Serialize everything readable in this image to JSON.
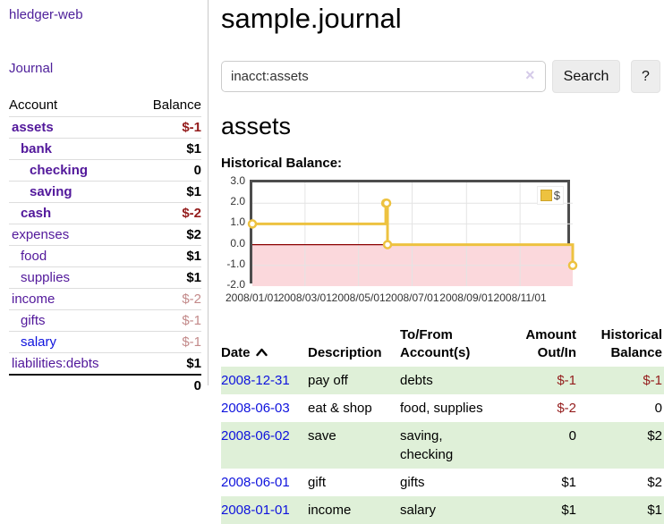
{
  "colors": {
    "link_purple": "#52189b",
    "link_blue": "#0e12dd",
    "negative_strong": "#941c1c",
    "negative_muted": "#c38a8a",
    "row_highlight": "#dff0d8",
    "chart_line": "#edc240",
    "chart_negative_region": "#fbd8dc",
    "chart_zero_line": "#8b0000"
  },
  "sidebar": {
    "app_title": "hledger-web",
    "journal_link": "Journal",
    "accounts_table": {
      "headers": {
        "account": "Account",
        "balance": "Balance"
      },
      "rows": [
        {
          "name": "assets",
          "indent": 0,
          "bold": true,
          "name_class": "",
          "balance": "$-1",
          "balance_class": "neg-strong"
        },
        {
          "name": "bank",
          "indent": 1,
          "bold": true,
          "name_class": "",
          "balance": "$1",
          "balance_class": ""
        },
        {
          "name": "checking",
          "indent": 2,
          "bold": true,
          "name_class": "",
          "balance": "0",
          "balance_class": ""
        },
        {
          "name": "saving",
          "indent": 2,
          "bold": true,
          "name_class": "",
          "balance": "$1",
          "balance_class": ""
        },
        {
          "name": "cash",
          "indent": 1,
          "bold": true,
          "name_class": "",
          "balance": "$-2",
          "balance_class": "neg-strong"
        },
        {
          "name": "expenses",
          "indent": 0,
          "bold": false,
          "name_class": "",
          "balance": "$2",
          "balance_class": ""
        },
        {
          "name": "food",
          "indent": 1,
          "bold": false,
          "name_class": "",
          "balance": "$1",
          "balance_class": ""
        },
        {
          "name": "supplies",
          "indent": 1,
          "bold": false,
          "name_class": "",
          "balance": "$1",
          "balance_class": ""
        },
        {
          "name": "income",
          "indent": 0,
          "bold": false,
          "name_class": "",
          "balance": "$-2",
          "balance_class": "neg-muted"
        },
        {
          "name": "gifts",
          "indent": 1,
          "bold": false,
          "name_class": "",
          "balance": "$-1",
          "balance_class": "neg-muted"
        },
        {
          "name": "salary",
          "indent": 1,
          "bold": false,
          "name_class": "blue",
          "balance": "$-1",
          "balance_class": "neg-muted"
        },
        {
          "name": "liabilities:debts",
          "indent": 0,
          "bold": false,
          "name_class": "",
          "balance": "$1",
          "balance_class": ""
        }
      ],
      "total": "0"
    }
  },
  "header": {
    "title": "sample.journal"
  },
  "search": {
    "query": "inacct:assets",
    "clear_icon": "×",
    "search_button": "Search",
    "help_button": "?"
  },
  "account_page": {
    "heading": "assets",
    "chart_label": "Historical Balance:"
  },
  "chart_data": {
    "type": "line",
    "title": "Historical Balance:",
    "step": true,
    "series": [
      {
        "name": "$",
        "color": "#edc240",
        "points": [
          {
            "x": "2008-01-01",
            "y": 1
          },
          {
            "x": "2008-06-01",
            "y": 2
          },
          {
            "x": "2008-06-02",
            "y": 2
          },
          {
            "x": "2008-06-03",
            "y": 0
          },
          {
            "x": "2008-12-31",
            "y": -1
          }
        ]
      }
    ],
    "x_range": [
      "2008-01-01",
      "2008-12-31"
    ],
    "ylim": [
      -2,
      3
    ],
    "y_ticks": [
      "3.0",
      "2.0",
      "1.0",
      "0.0",
      "-1.0",
      "-2.0"
    ],
    "x_ticks": [
      "2008/01/01",
      "2008/03/01",
      "2008/05/01",
      "2008/07/01",
      "2008/09/01",
      "2008/11/01"
    ],
    "legend_position": "top-right",
    "grid": true,
    "negative_region_color": "#fbd8dc",
    "zero_line_color": "#8b0000",
    "grid_color": "#e4e4e4"
  },
  "transactions": {
    "headers": [
      "Date",
      "Description",
      "To/From Account(s)",
      "Amount Out/In",
      "Historical Balance"
    ],
    "rows": [
      {
        "date": "2008-12-31",
        "description": "pay off",
        "to_from": "debts",
        "amount": "$-1",
        "balance": "$-1",
        "highlighted": true
      },
      {
        "date": "2008-06-03",
        "description": "eat & shop",
        "to_from": "food, supplies",
        "amount": "$-2",
        "balance": "0",
        "highlighted": false
      },
      {
        "date": "2008-06-02",
        "description": "save",
        "to_from": "saving,\nchecking",
        "amount": "0",
        "balance": "$2",
        "highlighted": true
      },
      {
        "date": "2008-06-01",
        "description": "gift",
        "to_from": "gifts",
        "amount": "$1",
        "balance": "$2",
        "highlighted": false
      },
      {
        "date": "2008-01-01",
        "description": "income",
        "to_from": "salary",
        "amount": "$1",
        "balance": "$1",
        "highlighted": true
      }
    ]
  }
}
